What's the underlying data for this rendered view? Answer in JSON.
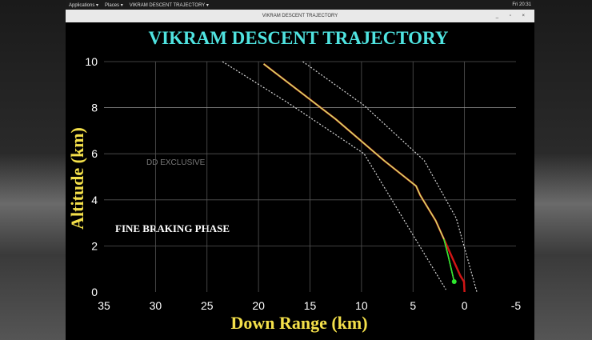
{
  "topbar": {
    "applications": "Applications ▾",
    "places": "Places ▾",
    "app": "VIKRAM DESCENT TRAJECTORY ▾",
    "clock": "Fri 20:31"
  },
  "window": {
    "title": "VIKRAM DESCENT TRAJECTORY",
    "controls": "_ ▫ ×"
  },
  "chart_data": {
    "type": "line",
    "title": "VIKRAM DESCENT TRAJECTORY",
    "xlabel": "Down Range (km)",
    "ylabel": "Altitude (km)",
    "xlim": [
      35,
      -5
    ],
    "ylim": [
      0,
      10
    ],
    "xticks": [
      35,
      30,
      25,
      20,
      15,
      10,
      5,
      0,
      -5
    ],
    "yticks": [
      0,
      2,
      4,
      6,
      8,
      10
    ],
    "annotations": [
      "DD EXCLUSIVE",
      "FINE BRAKING PHASE"
    ],
    "colors": {
      "title": "#4fe3e0",
      "axis_label": "#f4e04a",
      "actual": "#c9e86a",
      "planned": "#d01515",
      "landing": "#2ee82e",
      "bounds": "#d8d8d8"
    },
    "series": [
      {
        "role": "left-bound",
        "x": [
          23.5,
          17.1,
          9.75,
          1.8
        ],
        "y": [
          10,
          8.2,
          6.0,
          0.1
        ]
      },
      {
        "role": "right-bound",
        "x": [
          15.7,
          9.75,
          3.9,
          0.8,
          -0.7,
          -1.2
        ],
        "y": [
          10,
          8.1,
          5.7,
          3.2,
          0.8,
          0
        ]
      },
      {
        "role": "planned",
        "x": [
          19.5,
          12.5,
          7.8,
          4.7,
          4.3,
          2.8,
          2.0,
          0.4,
          0.05,
          0
        ],
        "y": [
          9.9,
          7.5,
          5.7,
          4.6,
          4.2,
          3.1,
          2.3,
          0.7,
          0.45,
          0
        ]
      },
      {
        "role": "actual",
        "x": [
          19.5,
          12.5,
          7.8,
          4.7,
          4.3,
          2.8,
          2.0,
          1.6,
          1.0
        ],
        "y": [
          9.9,
          7.5,
          5.7,
          4.6,
          4.2,
          3.1,
          2.3,
          1.6,
          0.45
        ]
      }
    ]
  }
}
